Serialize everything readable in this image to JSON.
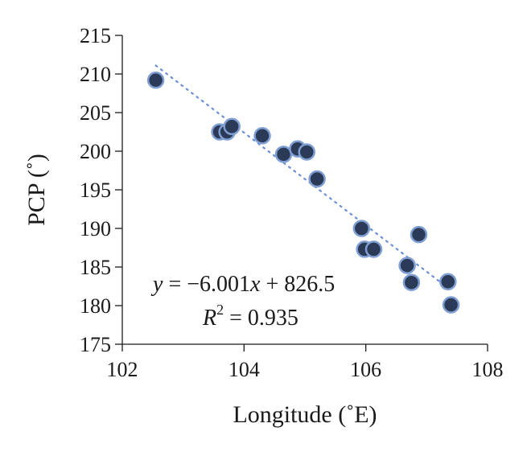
{
  "chart_data": {
    "type": "scatter",
    "xlabel": "Longitude (˚E)",
    "ylabel": "PCP (˚)",
    "xlim": [
      102,
      108
    ],
    "ylim": [
      175,
      215
    ],
    "x_ticks": [
      "102",
      "104",
      "106",
      "108"
    ],
    "y_ticks": [
      "175",
      "180",
      "185",
      "190",
      "195",
      "200",
      "205",
      "210",
      "215"
    ],
    "grid": false,
    "points": [
      {
        "x": 102.55,
        "y": 209.2
      },
      {
        "x": 103.6,
        "y": 202.5
      },
      {
        "x": 103.72,
        "y": 202.5
      },
      {
        "x": 103.8,
        "y": 203.2
      },
      {
        "x": 104.3,
        "y": 202.0
      },
      {
        "x": 104.65,
        "y": 199.6
      },
      {
        "x": 104.88,
        "y": 200.3
      },
      {
        "x": 105.03,
        "y": 199.9
      },
      {
        "x": 105.2,
        "y": 196.4
      },
      {
        "x": 105.93,
        "y": 190.0
      },
      {
        "x": 105.98,
        "y": 187.3
      },
      {
        "x": 106.13,
        "y": 187.3
      },
      {
        "x": 106.68,
        "y": 185.2
      },
      {
        "x": 106.75,
        "y": 183.0
      },
      {
        "x": 106.87,
        "y": 189.2
      },
      {
        "x": 107.35,
        "y": 183.1
      },
      {
        "x": 107.4,
        "y": 180.1
      }
    ],
    "trendline": {
      "slope": -6.001,
      "intercept": 826.5,
      "x_range": [
        102.55,
        107.4
      ],
      "equation_prefix": "y",
      "equation_rhs": " = −6.001",
      "equation_var": "x",
      "equation_tail": " + 826.5",
      "r2_label": "R",
      "r2_exp": "2",
      "r2_value": " = 0.935"
    },
    "colors": {
      "marker_fill": "#2b3a57",
      "marker_stroke": "#7f9fd3",
      "trendline": "#6b8fd6",
      "axis": "#1a1a1a"
    }
  }
}
